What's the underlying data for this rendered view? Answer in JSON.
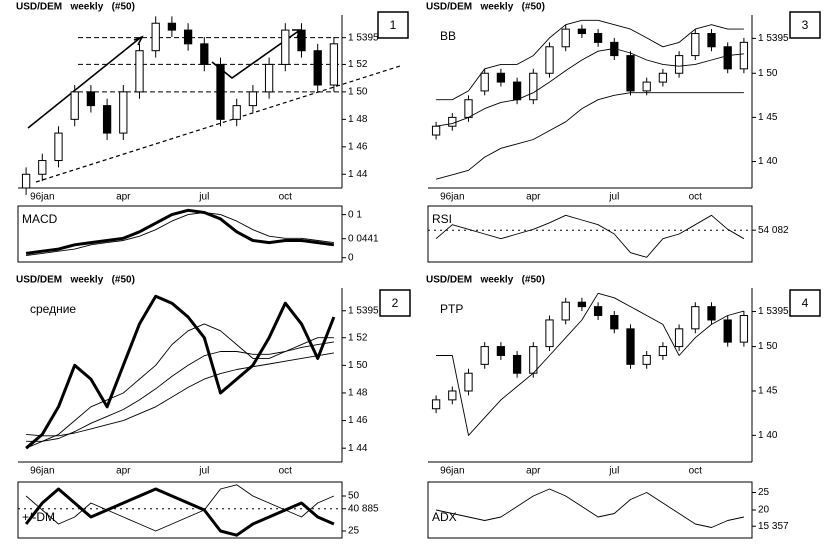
{
  "chart_data": [
    {
      "type": "candlestick",
      "number": "1",
      "title": "USD/DEM   weekly   (#50)",
      "categories": [
        null,
        "96jan",
        null,
        null,
        null,
        null,
        "apr",
        null,
        null,
        null,
        null,
        "jul",
        null,
        null,
        null,
        null,
        "oct",
        null,
        null,
        null
      ],
      "open": [
        1.43,
        1.44,
        1.45,
        1.48,
        1.5,
        1.49,
        1.47,
        1.5,
        1.53,
        1.55,
        1.545,
        1.535,
        1.52,
        1.48,
        1.49,
        1.5,
        1.52,
        1.545,
        1.53,
        1.505
      ],
      "high": [
        1.445,
        1.455,
        1.475,
        1.505,
        1.505,
        1.495,
        1.505,
        1.535,
        1.555,
        1.555,
        1.55,
        1.54,
        1.525,
        1.495,
        1.505,
        1.525,
        1.55,
        1.55,
        1.535,
        1.54
      ],
      "low": [
        1.425,
        1.435,
        1.445,
        1.475,
        1.485,
        1.465,
        1.465,
        1.495,
        1.525,
        1.54,
        1.53,
        1.515,
        1.475,
        1.475,
        1.485,
        1.495,
        1.515,
        1.525,
        1.5,
        1.5
      ],
      "close": [
        1.44,
        1.45,
        1.47,
        1.5,
        1.49,
        1.47,
        1.5,
        1.53,
        1.55,
        1.545,
        1.535,
        1.52,
        1.48,
        1.49,
        1.5,
        1.52,
        1.545,
        1.53,
        1.505,
        1.535
      ],
      "ylim": [
        1.43,
        1.556
      ],
      "yticks": [
        {
          "value": 1.5395,
          "label": "1 5395"
        },
        {
          "value": 1.52,
          "label": "1 52"
        },
        {
          "value": 1.5,
          "label": "1 50"
        },
        {
          "value": 1.48,
          "label": "1 48"
        },
        {
          "value": 1.46,
          "label": "1 46"
        },
        {
          "value": 1.44,
          "label": "1 44"
        }
      ],
      "levels": [
        1.5395,
        1.52,
        1.5
      ],
      "indicator": {
        "name": "MACD",
        "ylim": [
          -0.01,
          0.12
        ],
        "yticks": [
          {
            "value": 0.1,
            "label": "0 1"
          },
          {
            "value": 0.0441,
            "label": "0 0441"
          },
          0
        ],
        "series": [
          {
            "values": [
              0.01,
              0.015,
              0.02,
              0.03,
              0.035,
              0.04,
              0.045,
              0.06,
              0.08,
              0.1,
              0.11,
              0.105,
              0.09,
              0.06,
              0.04,
              0.035,
              0.04,
              0.04,
              0.035,
              0.03
            ],
            "bold": true
          },
          {
            "values": [
              0.005,
              0.01,
              0.015,
              0.02,
              0.03,
              0.035,
              0.04,
              0.05,
              0.065,
              0.085,
              0.1,
              0.105,
              0.1,
              0.085,
              0.065,
              0.05,
              0.045,
              0.045,
              0.04,
              0.035
            ],
            "bold": false
          }
        ]
      }
    },
    {
      "type": "line",
      "number": "2",
      "title": "USD/DEM   weekly   (#50)",
      "label": "средние",
      "categories": [
        null,
        "96jan",
        null,
        null,
        null,
        null,
        "apr",
        null,
        null,
        null,
        null,
        "jul",
        null,
        null,
        null,
        null,
        "oct",
        null,
        null,
        null
      ],
      "series": [
        {
          "values": [
            1.44,
            1.45,
            1.47,
            1.5,
            1.49,
            1.47,
            1.5,
            1.53,
            1.55,
            1.545,
            1.535,
            1.52,
            1.48,
            1.49,
            1.5,
            1.52,
            1.545,
            1.53,
            1.505,
            1.535
          ],
          "bold": true
        },
        {
          "values": [
            1.44,
            1.445,
            1.45,
            1.46,
            1.47,
            1.475,
            1.48,
            1.49,
            1.5,
            1.515,
            1.525,
            1.53,
            1.525,
            1.515,
            1.505,
            1.505,
            1.51,
            1.515,
            1.52,
            1.52
          ],
          "bold": false
        },
        {
          "values": [
            1.445,
            1.445,
            1.447,
            1.452,
            1.458,
            1.463,
            1.468,
            1.475,
            1.483,
            1.492,
            1.5,
            1.507,
            1.51,
            1.51,
            1.508,
            1.508,
            1.51,
            1.513,
            1.515,
            1.517
          ],
          "bold": false
        },
        {
          "values": [
            1.45,
            1.449,
            1.449,
            1.451,
            1.454,
            1.457,
            1.46,
            1.465,
            1.47,
            1.477,
            1.484,
            1.49,
            1.494,
            1.497,
            1.499,
            1.501,
            1.503,
            1.505,
            1.507,
            1.509
          ],
          "bold": false
        }
      ],
      "ylim": [
        1.43,
        1.556
      ],
      "yticks": [
        {
          "value": 1.5395,
          "label": "1 5395"
        },
        {
          "value": 1.52,
          "label": "1 52"
        },
        {
          "value": 1.5,
          "label": "1 50"
        },
        {
          "value": 1.48,
          "label": "1 48"
        },
        {
          "value": 1.46,
          "label": "1 46"
        },
        {
          "value": 1.44,
          "label": "1 44"
        }
      ],
      "indicator": {
        "name": "+/-DM",
        "ylim": [
          20,
          60
        ],
        "yticks": [
          50,
          {
            "value": 40.885,
            "label": "40 885"
          },
          25
        ],
        "dotted": {
          "value": 40.885
        },
        "series": [
          {
            "values": [
              30,
              45,
              55,
              45,
              35,
              40,
              45,
              50,
              55,
              50,
              45,
              40,
              25,
              22,
              30,
              35,
              40,
              45,
              35,
              30
            ],
            "bold": true
          },
          {
            "values": [
              50,
              40,
              30,
              35,
              45,
              40,
              35,
              30,
              25,
              30,
              35,
              40,
              55,
              58,
              50,
              45,
              40,
              35,
              45,
              50
            ],
            "bold": false
          }
        ]
      }
    },
    {
      "type": "candlestick",
      "number": "3",
      "title": "USD/DEM   weekly   (#50)",
      "label": "BB",
      "categories": [
        null,
        "96jan",
        null,
        null,
        null,
        null,
        "apr",
        null,
        null,
        null,
        null,
        "jul",
        null,
        null,
        null,
        null,
        "oct",
        null,
        null,
        null
      ],
      "open": [
        1.43,
        1.44,
        1.45,
        1.48,
        1.5,
        1.49,
        1.47,
        1.5,
        1.53,
        1.55,
        1.545,
        1.535,
        1.52,
        1.48,
        1.49,
        1.5,
        1.52,
        1.545,
        1.53,
        1.505
      ],
      "high": [
        1.445,
        1.455,
        1.475,
        1.505,
        1.505,
        1.495,
        1.505,
        1.535,
        1.555,
        1.555,
        1.55,
        1.54,
        1.525,
        1.495,
        1.505,
        1.525,
        1.55,
        1.55,
        1.535,
        1.54
      ],
      "low": [
        1.425,
        1.435,
        1.445,
        1.475,
        1.485,
        1.465,
        1.465,
        1.495,
        1.525,
        1.54,
        1.53,
        1.515,
        1.475,
        1.475,
        1.485,
        1.495,
        1.515,
        1.525,
        1.5,
        1.5
      ],
      "close": [
        1.44,
        1.45,
        1.47,
        1.5,
        1.49,
        1.47,
        1.5,
        1.53,
        1.55,
        1.545,
        1.535,
        1.52,
        1.48,
        1.49,
        1.5,
        1.52,
        1.545,
        1.53,
        1.505,
        1.535
      ],
      "series": [
        {
          "values": [
            1.47,
            1.47,
            1.48,
            1.505,
            1.51,
            1.51,
            1.52,
            1.54,
            1.555,
            1.56,
            1.56,
            1.555,
            1.55,
            1.54,
            1.53,
            1.535,
            1.55,
            1.555,
            1.55,
            1.55
          ],
          "bold": false
        },
        {
          "values": [
            1.44,
            1.443,
            1.45,
            1.46,
            1.467,
            1.47,
            1.478,
            1.49,
            1.503,
            1.515,
            1.525,
            1.528,
            1.523,
            1.515,
            1.51,
            1.508,
            1.51,
            1.515,
            1.52,
            1.522
          ],
          "bold": false
        },
        {
          "values": [
            1.38,
            1.385,
            1.39,
            1.405,
            1.415,
            1.42,
            1.425,
            1.435,
            1.445,
            1.46,
            1.47,
            1.475,
            1.478,
            1.478,
            1.478,
            1.478,
            1.478,
            1.478,
            1.478,
            1.478
          ],
          "bold": false
        }
      ],
      "ylim": [
        1.37,
        1.566
      ],
      "yticks": [
        {
          "value": 1.5395,
          "label": "1 5395"
        },
        {
          "value": 1.5,
          "label": "1 50"
        },
        {
          "value": 1.45,
          "label": "1 45"
        },
        {
          "value": 1.4,
          "label": "1 40"
        }
      ],
      "indicator": {
        "name": "RSI",
        "ylim": [
          20,
          80
        ],
        "yticks": [
          {
            "value": 54.082,
            "label": "54 082"
          }
        ],
        "dotted": {
          "value": 54.082
        },
        "series": [
          {
            "values": [
              45,
              60,
              55,
              50,
              45,
              50,
              55,
              62,
              70,
              65,
              60,
              50,
              30,
              25,
              45,
              50,
              60,
              70,
              55,
              45
            ],
            "bold": false
          }
        ]
      }
    },
    {
      "type": "candlestick",
      "number": "4",
      "title": "USD/DEM   weekly   (#50)",
      "label": "PTP",
      "categories": [
        null,
        "96jan",
        null,
        null,
        null,
        null,
        "apr",
        null,
        null,
        null,
        null,
        "jul",
        null,
        null,
        null,
        null,
        "oct",
        null,
        null,
        null
      ],
      "open": [
        1.43,
        1.44,
        1.45,
        1.48,
        1.5,
        1.49,
        1.47,
        1.5,
        1.53,
        1.55,
        1.545,
        1.535,
        1.52,
        1.48,
        1.49,
        1.5,
        1.52,
        1.545,
        1.53,
        1.505
      ],
      "high": [
        1.445,
        1.455,
        1.475,
        1.505,
        1.505,
        1.495,
        1.505,
        1.535,
        1.555,
        1.555,
        1.55,
        1.54,
        1.525,
        1.495,
        1.505,
        1.525,
        1.55,
        1.55,
        1.535,
        1.54
      ],
      "low": [
        1.425,
        1.435,
        1.445,
        1.475,
        1.485,
        1.465,
        1.465,
        1.495,
        1.525,
        1.54,
        1.53,
        1.515,
        1.475,
        1.475,
        1.485,
        1.495,
        1.515,
        1.525,
        1.5,
        1.5
      ],
      "close": [
        1.44,
        1.45,
        1.47,
        1.5,
        1.49,
        1.47,
        1.5,
        1.53,
        1.55,
        1.545,
        1.535,
        1.52,
        1.48,
        1.49,
        1.5,
        1.52,
        1.545,
        1.53,
        1.505,
        1.535
      ],
      "series": [
        {
          "values": [
            1.49,
            1.49,
            1.4,
            1.42,
            1.44,
            1.455,
            1.47,
            1.49,
            1.51,
            1.53,
            1.56,
            1.555,
            1.545,
            1.535,
            1.525,
            1.49,
            1.51,
            1.525,
            1.535,
            1.54
          ],
          "bold": false
        }
      ],
      "ylim": [
        1.37,
        1.566
      ],
      "yticks": [
        {
          "value": 1.5395,
          "label": "1 5395"
        },
        {
          "value": 1.5,
          "label": "1 50"
        },
        {
          "value": 1.45,
          "label": "1 45"
        },
        {
          "value": 1.4,
          "label": "1 40"
        }
      ],
      "indicator": {
        "name": "ADX",
        "ylim": [
          12,
          28
        ],
        "yticks": [
          25,
          20,
          {
            "value": 15.357,
            "label": "15 357"
          }
        ],
        "series": [
          {
            "values": [
              20,
              19,
              18,
              17,
              18,
              21,
              24,
              26,
              24,
              21,
              18,
              19,
              23,
              25,
              22,
              19,
              16,
              15,
              17,
              18
            ],
            "bold": false
          }
        ]
      }
    }
  ]
}
